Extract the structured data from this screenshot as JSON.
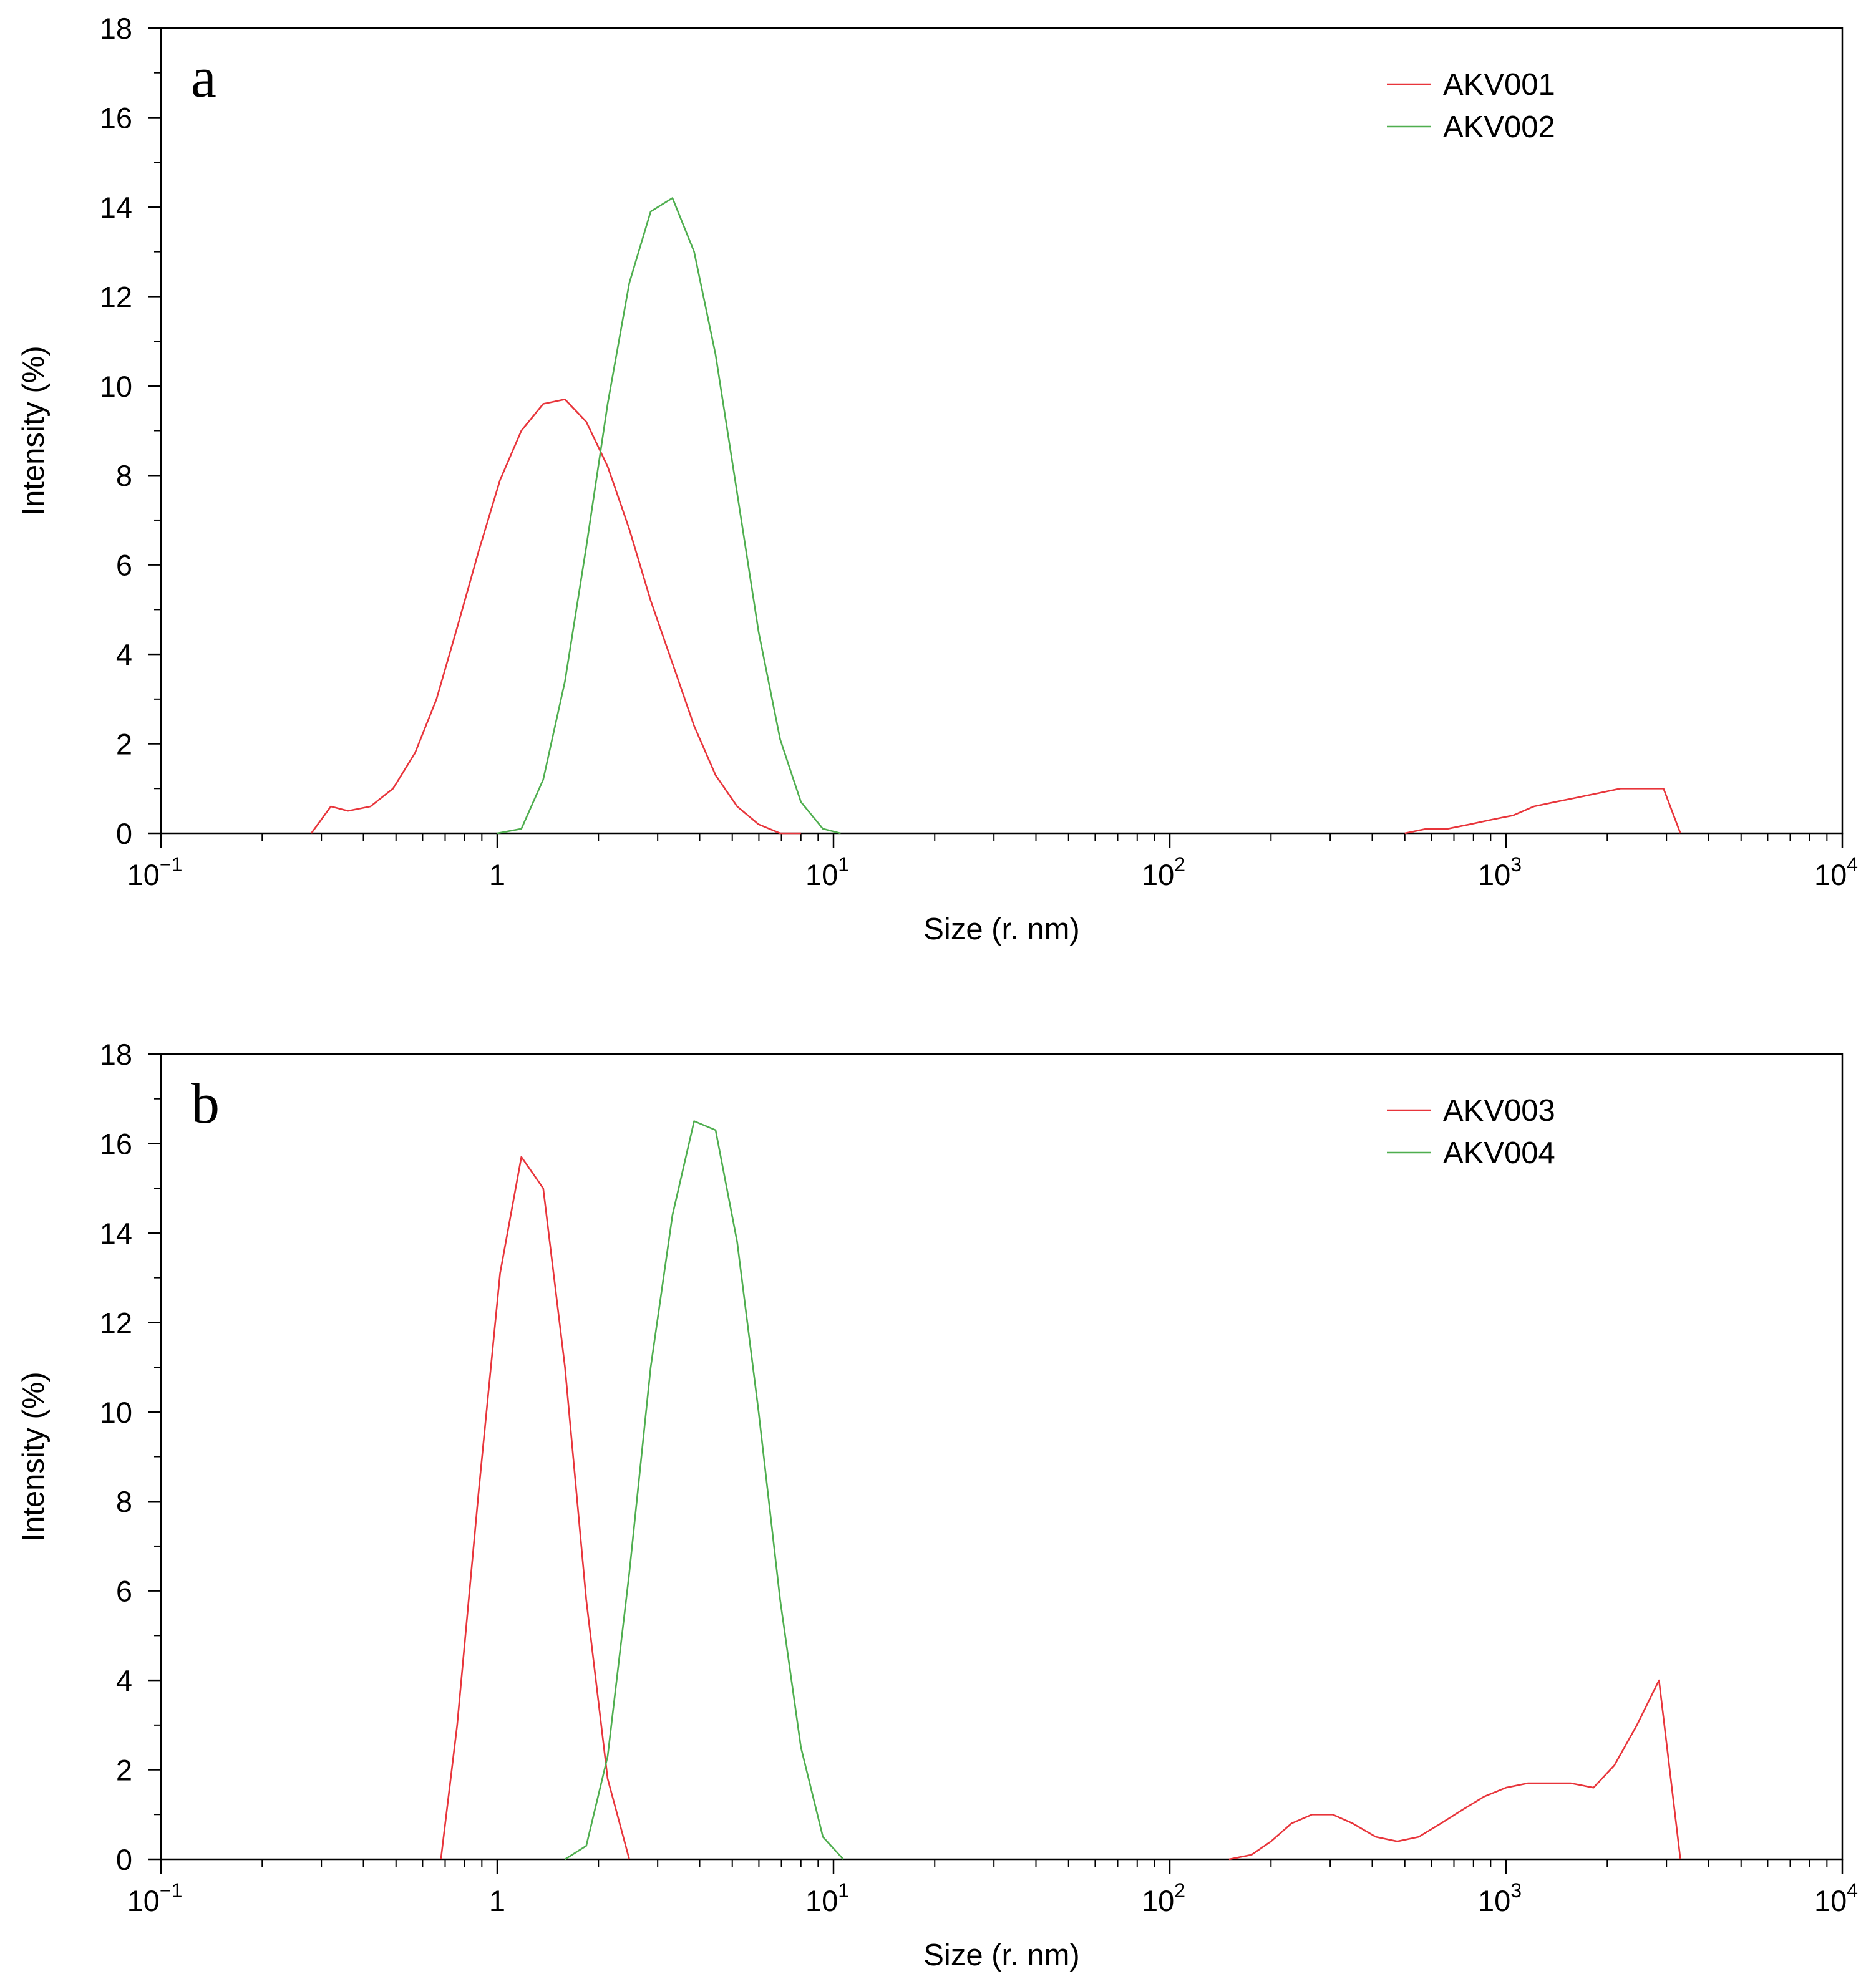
{
  "chart_data": [
    {
      "type": "line",
      "panel_label": "a",
      "xscale": "log",
      "xlabel": "Size (r. nm)",
      "ylabel": "Intensity (%)",
      "xlim": [
        0.1,
        10000
      ],
      "ylim": [
        0,
        18
      ],
      "x_ticks": [
        {
          "value": 0.1,
          "base": "10",
          "exp": "−1"
        },
        {
          "value": 1,
          "base": "1",
          "exp": ""
        },
        {
          "value": 10,
          "base": "10",
          "exp": "1"
        },
        {
          "value": 100,
          "base": "10",
          "exp": "2"
        },
        {
          "value": 1000,
          "base": "10",
          "exp": "3"
        },
        {
          "value": 10000,
          "base": "10",
          "exp": "4"
        }
      ],
      "y_ticks": [
        0,
        2,
        4,
        6,
        8,
        10,
        12,
        14,
        16,
        18
      ],
      "legend_position": "top-right",
      "series": [
        {
          "name": "AKV001",
          "color": "#e8353b",
          "x": [
            0.28,
            0.32,
            0.36,
            0.42,
            0.49,
            0.57,
            0.66,
            0.76,
            0.88,
            1.02,
            1.18,
            1.37,
            1.59,
            1.84,
            2.13,
            2.47,
            2.86,
            3.32,
            3.85,
            4.46,
            5.17,
            5.99,
            6.94,
            8.0
          ],
          "y": [
            0,
            0.6,
            0.5,
            0.6,
            1.0,
            1.8,
            3.0,
            4.6,
            6.3,
            7.9,
            9.0,
            9.6,
            9.7,
            9.2,
            8.2,
            6.8,
            5.2,
            3.8,
            2.4,
            1.3,
            0.6,
            0.2,
            0,
            0
          ]
        },
        {
          "name": "AKV001",
          "color": "#e8353b",
          "x": [
            500,
            580,
            670,
            780,
            900,
            1050,
            1210,
            1400,
            1630,
            1890,
            2190,
            2530,
            2940,
            3300
          ],
          "y": [
            0,
            0.1,
            0.1,
            0.2,
            0.3,
            0.4,
            0.6,
            0.7,
            0.8,
            0.9,
            1.0,
            1.0,
            1.0,
            0
          ]
        },
        {
          "name": "AKV002",
          "color": "#4fae4f",
          "x": [
            1.0,
            1.18,
            1.37,
            1.59,
            1.84,
            2.13,
            2.47,
            2.86,
            3.32,
            3.85,
            4.46,
            5.17,
            5.99,
            6.94,
            8.0,
            9.3,
            10.5
          ],
          "y": [
            0,
            0.1,
            1.2,
            3.4,
            6.4,
            9.6,
            12.3,
            13.9,
            14.2,
            13.0,
            10.7,
            7.6,
            4.5,
            2.1,
            0.7,
            0.1,
            0
          ]
        }
      ],
      "legend": [
        {
          "label": "AKV001",
          "color": "#e8353b"
        },
        {
          "label": "AKV002",
          "color": "#4fae4f"
        }
      ]
    },
    {
      "type": "line",
      "panel_label": "b",
      "xscale": "log",
      "xlabel": "Size (r. nm)",
      "ylabel": "Intensity (%)",
      "xlim": [
        0.1,
        10000
      ],
      "ylim": [
        0,
        18
      ],
      "x_ticks": [
        {
          "value": 0.1,
          "base": "10",
          "exp": "−1"
        },
        {
          "value": 1,
          "base": "1",
          "exp": ""
        },
        {
          "value": 10,
          "base": "10",
          "exp": "1"
        },
        {
          "value": 100,
          "base": "10",
          "exp": "2"
        },
        {
          "value": 1000,
          "base": "10",
          "exp": "3"
        },
        {
          "value": 10000,
          "base": "10",
          "exp": "4"
        }
      ],
      "y_ticks": [
        0,
        2,
        4,
        6,
        8,
        10,
        12,
        14,
        16,
        18
      ],
      "legend_position": "top-right",
      "series": [
        {
          "name": "AKV003",
          "color": "#e8353b",
          "x": [
            0.68,
            0.76,
            0.88,
            1.02,
            1.18,
            1.37,
            1.59,
            1.84,
            2.13,
            2.47
          ],
          "y": [
            0,
            3.0,
            8.2,
            13.1,
            15.7,
            15.0,
            11.0,
            5.8,
            1.8,
            0
          ]
        },
        {
          "name": "AKV003",
          "color": "#e8353b",
          "x": [
            150,
            175,
            200,
            230,
            265,
            305,
            350,
            410,
            475,
            550,
            640,
            740,
            860,
            1000,
            1160,
            1350,
            1560,
            1820,
            2100,
            2450,
            2850,
            3300
          ],
          "y": [
            0,
            0.1,
            0.4,
            0.8,
            1.0,
            1.0,
            0.8,
            0.5,
            0.4,
            0.5,
            0.8,
            1.1,
            1.4,
            1.6,
            1.7,
            1.7,
            1.7,
            1.6,
            2.1,
            3.0,
            4.0,
            0
          ]
        },
        {
          "name": "AKV004",
          "color": "#4fae4f",
          "x": [
            1.59,
            1.84,
            2.13,
            2.47,
            2.86,
            3.32,
            3.85,
            4.46,
            5.17,
            5.99,
            6.94,
            8.0,
            9.3,
            10.7
          ],
          "y": [
            0,
            0.3,
            2.3,
            6.4,
            11.0,
            14.4,
            16.5,
            16.3,
            13.8,
            10.0,
            5.8,
            2.5,
            0.5,
            0
          ]
        }
      ],
      "legend": [
        {
          "label": "AKV003",
          "color": "#e8353b"
        },
        {
          "label": "AKV004",
          "color": "#4fae4f"
        }
      ]
    }
  ]
}
